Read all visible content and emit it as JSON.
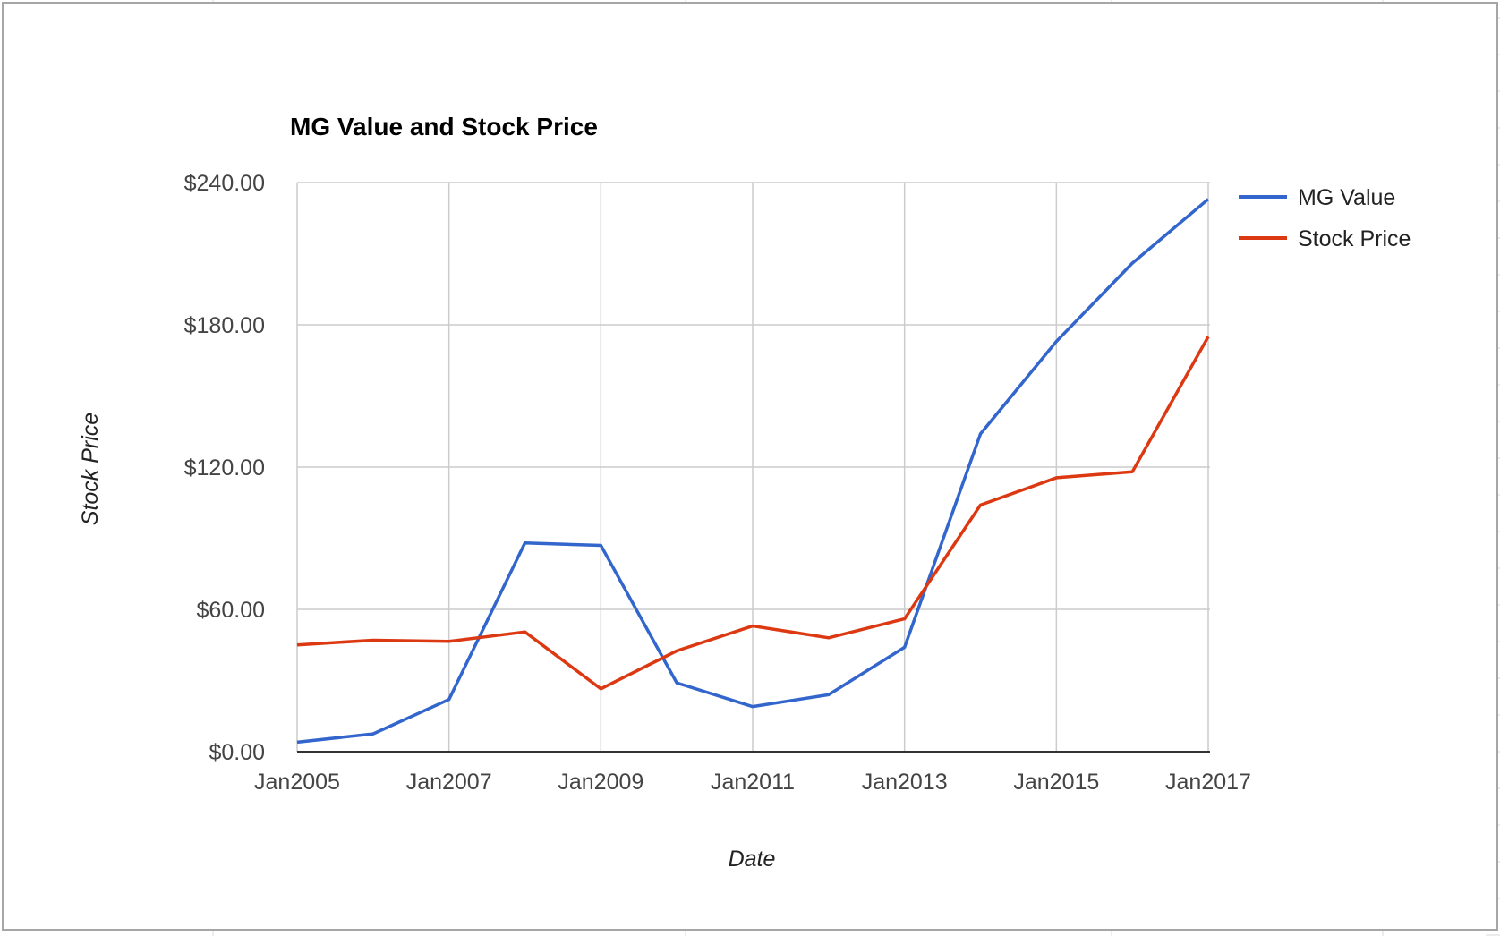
{
  "chart_data": {
    "type": "line",
    "title": "MG Value and Stock Price",
    "xlabel": "Date",
    "ylabel": "Stock Price",
    "x": [
      "Jan2005",
      "Jan2006",
      "Jan2007",
      "Jan2008",
      "Jan2009",
      "Jan2010",
      "Jan2011",
      "Jan2012",
      "Jan2013",
      "Jan2014",
      "Jan2015",
      "Jan2016",
      "Jan2017"
    ],
    "x_ticks": [
      "Jan2005",
      "Jan2007",
      "Jan2009",
      "Jan2011",
      "Jan2013",
      "Jan2015",
      "Jan2017"
    ],
    "y_ticks": [
      "$0.00",
      "$60.00",
      "$120.00",
      "$180.00",
      "$240.00"
    ],
    "y_tick_values": [
      0,
      60,
      120,
      180,
      240
    ],
    "ylim": [
      0,
      240
    ],
    "grid": true,
    "legend_position": "right",
    "series": [
      {
        "name": "MG Value",
        "color": "#3366cc",
        "values": [
          4,
          7.5,
          22,
          88,
          87,
          29,
          19,
          24,
          44,
          134,
          173,
          206,
          233
        ]
      },
      {
        "name": "Stock Price",
        "color": "#dc3912",
        "values": [
          45,
          47,
          46.5,
          50.5,
          26.5,
          42.5,
          53,
          48,
          56,
          104,
          115.5,
          118,
          175
        ]
      }
    ]
  }
}
